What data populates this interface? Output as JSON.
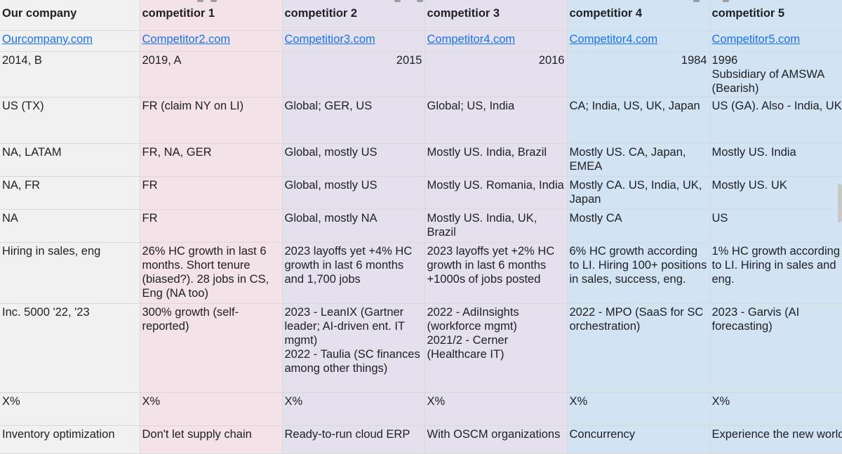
{
  "header": [
    "Our company",
    "competitior 1",
    "competitior 2",
    "competitior 3",
    "competitior 4",
    "competitior 5"
  ],
  "websites": [
    "Ourcompany.com",
    "Competitor2.com",
    "Competitior3.com",
    "Competitor4.com",
    "Competitor4.com",
    "Competitor5.com"
  ],
  "rows": [
    [
      "2014, B",
      "2019, A",
      "2015",
      "2016",
      "1984",
      "1996\nSubsidiary of AMSWA (Bearish)"
    ],
    [
      "US (TX)",
      "FR (claim NY on LI)",
      "Global; GER, US",
      "Global; US, India",
      "CA; India, US, UK, Japan",
      "US (GA). Also - India, UK, ..."
    ],
    [
      "NA, LATAM",
      "FR, NA, GER",
      "Global, mostly US",
      "Mostly US. India, Brazil",
      "Mostly US. CA, Japan, EMEA",
      "Mostly US. India"
    ],
    [
      "NA, FR",
      "FR",
      "Global, mostly US",
      "Mostly US. Romania, India",
      "Mostly CA. US, India, UK, Japan",
      "Mostly US. UK"
    ],
    [
      "NA",
      "FR",
      "Global, mostly NA",
      "Mostly US. India, UK, Brazil",
      "Mostly CA",
      "US"
    ],
    [
      "Hiring in sales, eng",
      "26% HC growth in last 6 months. Short tenure (biased?). 28 jobs in CS, Eng (NA too)",
      "2023 layoffs yet +4% HC growth in last 6 months and 1,700 jobs",
      "2023 layoffs yet +2% HC growth in last 6 months +1000s of jobs posted",
      "6% HC growth according to LI. Hiring 100+ positions in sales, success, eng.",
      "1% HC growth according to LI. Hiring in sales and eng."
    ],
    [
      "Inc. 5000 '22, '23",
      "300% growth (self-reported)",
      "2023 - LeanIX (Gartner leader; AI-driven ent. IT mgmt)\n2022 - Taulia (SC finances among other things)",
      "2022 - AdiInsights (workforce mgmt)\n2021/2 - Cerner (Healthcare IT)",
      "2022 - MPO (SaaS for SC orchestration)",
      "2023 - Garvis (AI forecasting)"
    ],
    [
      "X%",
      "X%",
      "X%",
      "X%",
      "X%",
      "X%"
    ],
    [
      "Inventory optimization",
      "Don't let supply chain",
      "Ready-to-run cloud ERP",
      "With OSCM organizations",
      "Concurrency",
      "Experience the new world"
    ]
  ]
}
